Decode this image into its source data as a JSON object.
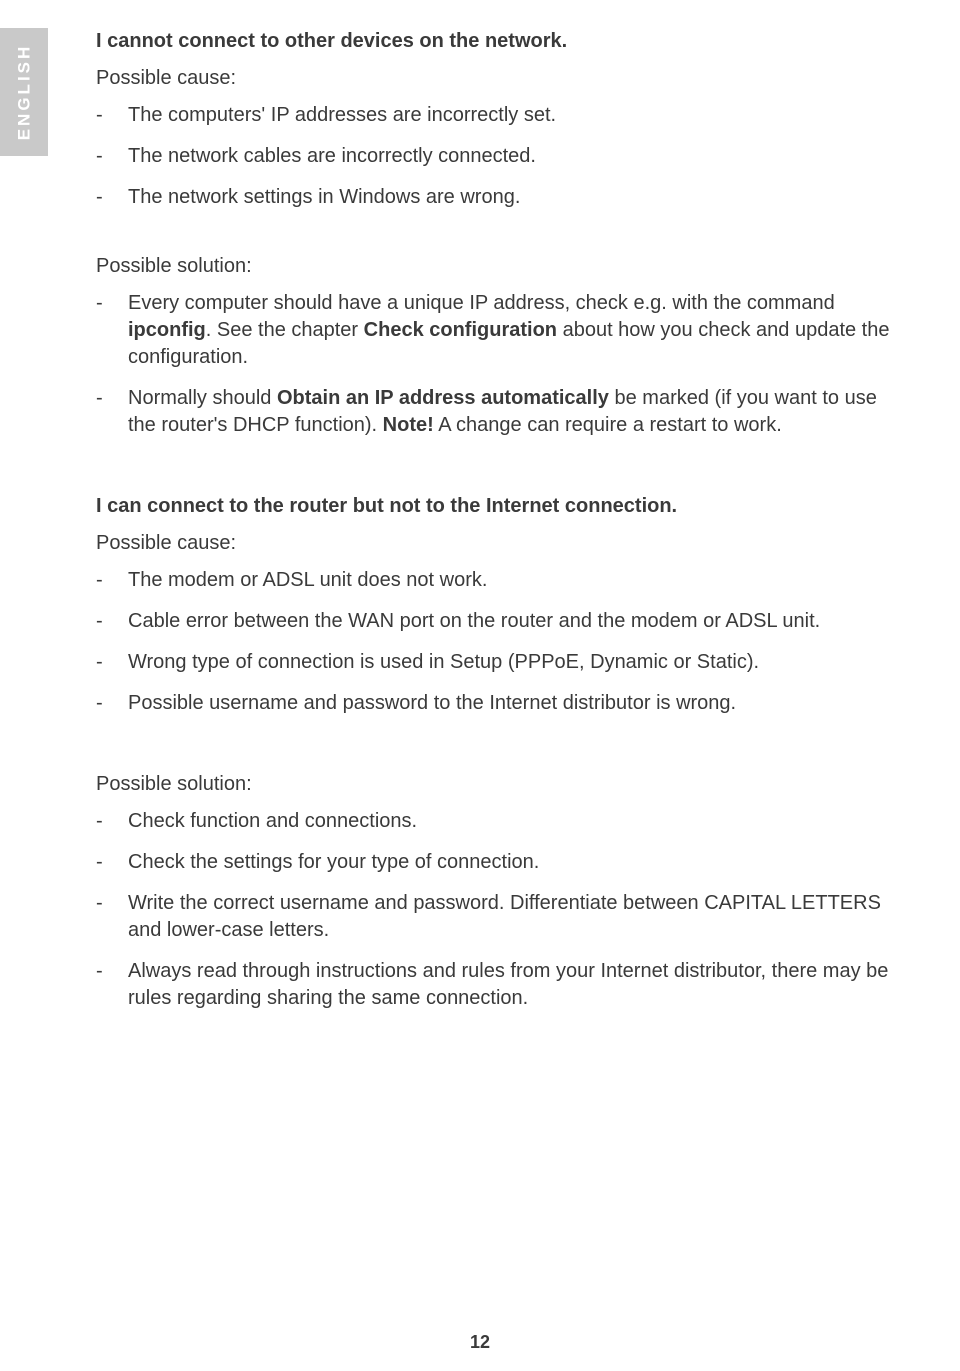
{
  "lang_tab": "ENGLISH",
  "page_number": "12",
  "colors": {
    "tab_bg": "#c9c9c9",
    "tab_text": "#ffffff",
    "body_text": "#3a3a3a",
    "page_bg": "#ffffff"
  },
  "typography": {
    "body_fontsize_pt": 15,
    "heading_weight": "bold",
    "font_family": "Arial"
  },
  "section1": {
    "heading": "I cannot connect to other devices on the network.",
    "cause_label": "Possible cause:",
    "causes": [
      "The computers' IP addresses are incorrectly set.",
      "The network cables are incorrectly connected.",
      "The network settings in Windows are wrong."
    ],
    "solution_label": "Possible solution:",
    "sol1_a": "Every computer should have a unique IP address, check e.g. with the command ",
    "sol1_b_bold": "ipconfig",
    "sol1_c": ". See the chapter ",
    "sol1_d_bold": "Check configuration",
    "sol1_e": " about how you check and update the configuration.",
    "sol2_a": "Normally should ",
    "sol2_b_bold": "Obtain an IP address automatically",
    "sol2_c": " be marked (if you want to use the router's DHCP function). ",
    "sol2_d_bold": "Note!",
    "sol2_e": " A change can require a restart to work."
  },
  "section2": {
    "heading": "I can connect to the router but not to the Internet connection.",
    "cause_label": "Possible cause:",
    "causes": [
      "The modem or ADSL unit does not work.",
      "Cable error between the WAN port on the router and the modem or ADSL unit.",
      "Wrong type of connection is used in Setup (PPPoE, Dynamic or Static).",
      "Possible username and password to the Internet distributor is wrong."
    ],
    "solution_label": "Possible solution:",
    "solutions": [
      "Check function and connections.",
      "Check the settings for your type of connection.",
      "Write the correct username and password.  Differentiate between CAPITAL LETTERS and lower-case letters.",
      "Always read through instructions and rules from your Internet distributor, there may be rules regarding sharing the same connection."
    ]
  }
}
